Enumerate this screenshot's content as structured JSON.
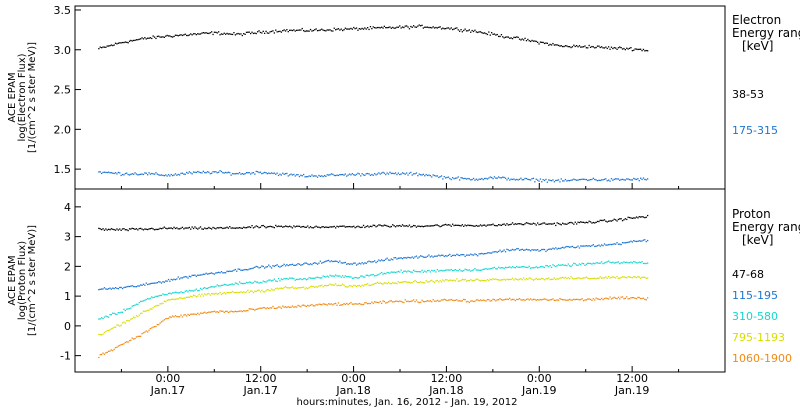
{
  "chart_data": {
    "xlabel": "hours:minutes, Jan. 16, 2012 - Jan. 19, 2012",
    "x_ticks": [
      {
        "hour": 24,
        "time": "0:00",
        "date": "Jan.17"
      },
      {
        "hour": 36,
        "time": "12:00",
        "date": "Jan.17"
      },
      {
        "hour": 48,
        "time": "0:00",
        "date": "Jan.18"
      },
      {
        "hour": 60,
        "time": "12:00",
        "date": "Jan.18"
      },
      {
        "hour": 72,
        "time": "0:00",
        "date": "Jan.19"
      },
      {
        "hour": 84,
        "time": "12:00",
        "date": "Jan.19"
      }
    ],
    "panels": [
      {
        "type": "scatter",
        "ylabel_lines": [
          "ACE EPAM",
          "log(Electron Flux)",
          "[1/(cm^2 s ster MeV)]"
        ],
        "ylim": [
          1.25,
          3.55
        ],
        "yticks": [
          {
            "value": 1.5,
            "label": "1.5"
          },
          {
            "value": 2.0,
            "label": "2.0"
          },
          {
            "value": 2.5,
            "label": "2.5"
          },
          {
            "value": 3.0,
            "label": "3.0"
          },
          {
            "value": 3.5,
            "label": "3.5"
          }
        ],
        "legend_title_lines": [
          "Electron",
          "Energy ranges",
          "[keV]"
        ],
        "series": [
          {
            "name": "38-53",
            "color": "#000000",
            "x": [
              15,
              18,
              21,
              24,
              27,
              30,
              33,
              36,
              39,
              42,
              45,
              48,
              51,
              54,
              57,
              60,
              63,
              66,
              69,
              72,
              75,
              78,
              81,
              84,
              86
            ],
            "y": [
              3.02,
              3.1,
              3.15,
              3.18,
              3.2,
              3.22,
              3.2,
              3.23,
              3.25,
              3.25,
              3.26,
              3.27,
              3.28,
              3.29,
              3.3,
              3.28,
              3.25,
              3.2,
              3.15,
              3.1,
              3.05,
              3.05,
              3.03,
              3.02,
              3.0
            ]
          },
          {
            "name": "175-315",
            "color": "#1c75d2",
            "x": [
              15,
              18,
              21,
              24,
              27,
              30,
              33,
              36,
              39,
              42,
              45,
              48,
              51,
              54,
              57,
              60,
              63,
              66,
              69,
              72,
              75,
              78,
              81,
              84,
              86
            ],
            "y": [
              1.47,
              1.45,
              1.45,
              1.43,
              1.46,
              1.47,
              1.45,
              1.47,
              1.44,
              1.42,
              1.43,
              1.44,
              1.45,
              1.45,
              1.44,
              1.4,
              1.38,
              1.4,
              1.38,
              1.37,
              1.36,
              1.38,
              1.37,
              1.38,
              1.38
            ]
          }
        ]
      },
      {
        "type": "scatter",
        "ylabel_lines": [
          "ACE EPAM",
          "log(Proton Flux)",
          "[1/(cm^2 s ster MeV)]"
        ],
        "ylim": [
          -1.55,
          4.6
        ],
        "yticks": [
          {
            "value": -1,
            "label": "-1"
          },
          {
            "value": 0,
            "label": "0"
          },
          {
            "value": 1,
            "label": "1"
          },
          {
            "value": 2,
            "label": "2"
          },
          {
            "value": 3,
            "label": "3"
          },
          {
            "value": 4,
            "label": "4"
          }
        ],
        "legend_title_lines": [
          "Proton",
          "Energy ranges",
          "[keV]"
        ],
        "series": [
          {
            "name": "47-68",
            "color": "#000000",
            "x": [
              15,
              18,
              21,
              24,
              27,
              30,
              33,
              36,
              39,
              42,
              45,
              48,
              51,
              54,
              57,
              60,
              63,
              66,
              69,
              72,
              75,
              78,
              81,
              84,
              86
            ],
            "y": [
              3.27,
              3.25,
              3.27,
              3.3,
              3.3,
              3.3,
              3.32,
              3.35,
              3.35,
              3.35,
              3.35,
              3.35,
              3.38,
              3.38,
              3.38,
              3.4,
              3.4,
              3.4,
              3.45,
              3.45,
              3.45,
              3.5,
              3.55,
              3.65,
              3.7
            ]
          },
          {
            "name": "115-195",
            "color": "#1c75d2",
            "x": [
              15,
              18,
              21,
              24,
              27,
              30,
              33,
              36,
              39,
              42,
              45,
              48,
              51,
              54,
              57,
              60,
              63,
              66,
              69,
              72,
              75,
              78,
              81,
              84,
              86
            ],
            "y": [
              1.25,
              1.3,
              1.4,
              1.55,
              1.7,
              1.8,
              1.9,
              2.0,
              2.05,
              2.1,
              2.2,
              2.1,
              2.2,
              2.3,
              2.35,
              2.4,
              2.4,
              2.5,
              2.6,
              2.55,
              2.65,
              2.7,
              2.75,
              2.85,
              2.9
            ]
          },
          {
            "name": "310-580",
            "color": "#17d6cf",
            "x": [
              15,
              18,
              21,
              24,
              27,
              30,
              33,
              36,
              39,
              42,
              45,
              48,
              51,
              54,
              57,
              60,
              63,
              66,
              69,
              72,
              75,
              78,
              81,
              84,
              86
            ],
            "y": [
              0.25,
              0.5,
              0.9,
              1.1,
              1.2,
              1.35,
              1.45,
              1.5,
              1.6,
              1.6,
              1.7,
              1.65,
              1.75,
              1.85,
              1.85,
              1.9,
              1.9,
              1.95,
              2.0,
              2.0,
              2.05,
              2.1,
              2.15,
              2.15,
              2.15
            ]
          },
          {
            "name": "795-1193",
            "color": "#d8dd00",
            "x": [
              15,
              18,
              21,
              24,
              27,
              30,
              33,
              36,
              39,
              42,
              45,
              48,
              51,
              54,
              57,
              60,
              63,
              66,
              69,
              72,
              75,
              78,
              81,
              84,
              86
            ],
            "y": [
              -0.3,
              0.1,
              0.5,
              0.9,
              1.0,
              1.1,
              1.15,
              1.2,
              1.3,
              1.3,
              1.4,
              1.35,
              1.45,
              1.5,
              1.5,
              1.55,
              1.55,
              1.58,
              1.6,
              1.6,
              1.62,
              1.62,
              1.65,
              1.65,
              1.65
            ]
          },
          {
            "name": "1060-1900",
            "color": "#f08a14",
            "x": [
              15,
              18,
              21,
              24,
              27,
              30,
              33,
              36,
              39,
              42,
              45,
              48,
              51,
              54,
              57,
              60,
              63,
              66,
              69,
              72,
              75,
              78,
              81,
              84,
              86
            ],
            "y": [
              -1.0,
              -0.6,
              -0.2,
              0.3,
              0.4,
              0.5,
              0.5,
              0.6,
              0.65,
              0.7,
              0.75,
              0.75,
              0.8,
              0.85,
              0.85,
              0.9,
              0.85,
              0.9,
              0.9,
              0.9,
              0.9,
              0.9,
              0.95,
              0.95,
              0.95
            ]
          }
        ]
      }
    ]
  }
}
